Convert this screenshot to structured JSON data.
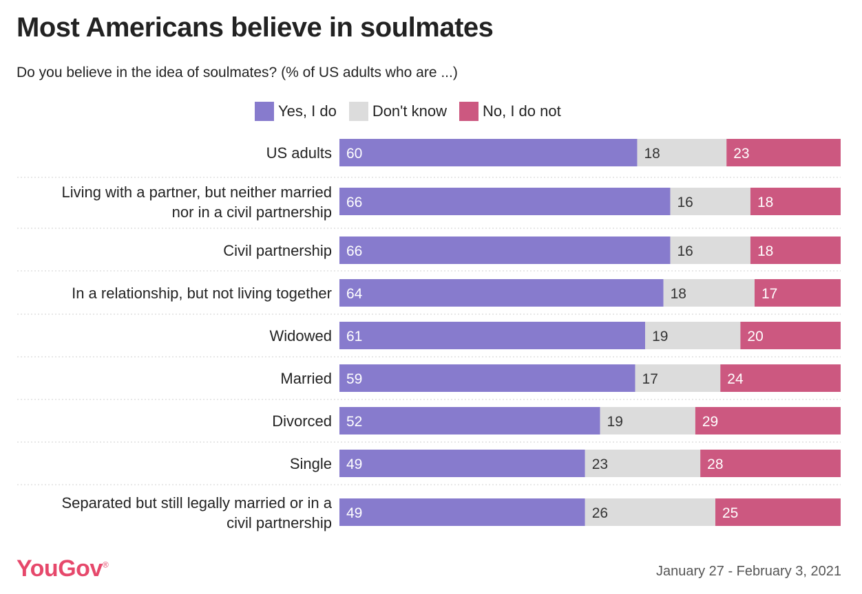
{
  "title": "Most Americans believe in soulmates",
  "subtitle": "Do you believe in the idea of soulmates? (% of US adults who are ...)",
  "footer": {
    "brand": "YouGov",
    "brand_mark": "®",
    "date": "January 27 - February 3, 2021"
  },
  "colors": {
    "yes": "#877bcd",
    "dont_know": "#dcdcdc",
    "no": "#cc5880",
    "brand": "#e6486b"
  },
  "chart_data": {
    "type": "bar",
    "orientation": "horizontal",
    "stacked": true,
    "title": "Most Americans believe in soulmates",
    "subtitle": "Do you believe in the idea of soulmates? (% of US adults who are ...)",
    "legend_position": "top",
    "categories": [
      "US adults",
      "Living with a partner, but neither married nor in a civil partnership",
      "Civil partnership",
      "In a relationship, but not living together",
      "Widowed",
      "Married",
      "Divorced",
      "Single",
      "Separated but still legally married or in a civil partnership"
    ],
    "category_lines": [
      [
        "US adults"
      ],
      [
        "Living with a partner, but neither married",
        "nor in a civil partnership"
      ],
      [
        "Civil partnership"
      ],
      [
        "In a relationship, but not living together"
      ],
      [
        "Widowed"
      ],
      [
        "Married"
      ],
      [
        "Divorced"
      ],
      [
        "Single"
      ],
      [
        "Separated but still legally married or in a",
        "civil partnership"
      ]
    ],
    "series": [
      {
        "name": "Yes, I do",
        "color": "#877bcd",
        "values": [
          60,
          66,
          66,
          64,
          61,
          59,
          52,
          49,
          49
        ]
      },
      {
        "name": "Don't know",
        "color": "#dcdcdc",
        "values": [
          18,
          16,
          16,
          18,
          19,
          17,
          19,
          23,
          26
        ]
      },
      {
        "name": "No, I do not",
        "color": "#cc5880",
        "values": [
          23,
          18,
          18,
          17,
          20,
          24,
          29,
          28,
          25
        ]
      }
    ]
  }
}
